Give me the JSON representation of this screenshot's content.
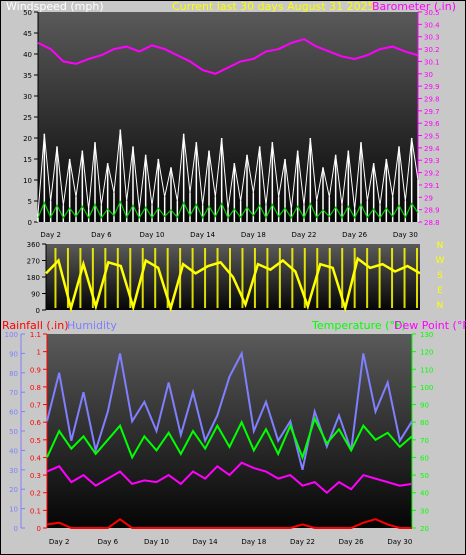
{
  "header": {
    "left_title": "Windspeed (mph)",
    "center_title": "Current last 30 days August 31 2025",
    "right_title": "Barometer (.in)"
  },
  "middle_labels": {
    "right_letters": [
      "N",
      "W",
      "S",
      "E",
      "N"
    ]
  },
  "bottom_header": {
    "rainfall": "Rainfall (.in)",
    "humidity": "Humidity",
    "temperature": "Temperature (°F)",
    "dewpoint": "Dew Point (°F)"
  },
  "colors": {
    "wind_gust": "#ffffff",
    "wind_avg": "#00cc00",
    "barometer": "#ff00ff",
    "direction": "#ffff00",
    "rainfall": "#ff0000",
    "humidity": "#7f7fff",
    "temperature": "#00ff00",
    "dewpoint": "#ff00ff",
    "left_title_color": "#ffffff",
    "center_title_color": "#ffff00",
    "right_title_color": "#ff00ff",
    "rain_axis_color": "#ff0000",
    "humidity_axis_color": "#7f7fff",
    "temp_axis_color": "#00ff00"
  },
  "chart_data": [
    {
      "type": "line",
      "x_label_ticks": [
        "Day 2",
        "Day 6",
        "Day 10",
        "Day 14",
        "Day 18",
        "Day 22",
        "Day 26",
        "Day 30"
      ],
      "xlim": [
        1,
        31
      ],
      "left_axis": {
        "ticks": [
          "0",
          "5",
          "10",
          "15",
          "20",
          "25",
          "30",
          "35",
          "40",
          "45",
          "50"
        ],
        "ylim": [
          0,
          50
        ]
      },
      "right_axis": {
        "ticks": [
          "28.8",
          "28.9",
          "29",
          "29.1",
          "29.2",
          "29.3",
          "29.4",
          "29.5",
          "29.6",
          "29.7",
          "29.8",
          "29.9",
          "30",
          "30.1",
          "30.2",
          "30.3",
          "30.4",
          "30.5"
        ],
        "ylim": [
          28.8,
          30.5
        ]
      },
      "series": [
        {
          "name": "Windspeed (mph)",
          "axis": "left",
          "x": [
            1,
            1.5,
            2,
            2.5,
            3,
            3.5,
            4,
            4.5,
            5,
            5.5,
            6,
            6.5,
            7,
            7.5,
            8,
            8.5,
            9,
            9.5,
            10,
            10.5,
            11,
            11.5,
            12,
            12.5,
            13,
            13.5,
            14,
            14.5,
            15,
            15.5,
            16,
            16.5,
            17,
            17.5,
            18,
            18.5,
            19,
            19.5,
            20,
            20.5,
            21,
            21.5,
            22,
            22.5,
            23,
            23.5,
            24,
            24.5,
            25,
            25.5,
            26,
            26.5,
            27,
            27.5,
            28,
            28.5,
            29,
            29.5,
            30,
            30.5,
            31
          ],
          "values": [
            2,
            21,
            5,
            18,
            4,
            15,
            6,
            17,
            3,
            19,
            4,
            14,
            7,
            22,
            5,
            18,
            3,
            16,
            4,
            15,
            6,
            13,
            5,
            21,
            7,
            19,
            4,
            17,
            6,
            20,
            3,
            14,
            5,
            16,
            7,
            18,
            4,
            19,
            6,
            15,
            3,
            17,
            4,
            20,
            5,
            13,
            6,
            16,
            4,
            17,
            3,
            19,
            5,
            14,
            4,
            15,
            6,
            18,
            5,
            20,
            10
          ]
        },
        {
          "name": "Barometer (.in)",
          "axis": "right",
          "x": [
            1,
            2,
            3,
            4,
            5,
            6,
            7,
            8,
            9,
            10,
            11,
            12,
            13,
            14,
            15,
            16,
            17,
            18,
            19,
            20,
            21,
            22,
            23,
            24,
            25,
            26,
            27,
            28,
            29,
            30,
            31
          ],
          "values": [
            30.25,
            30.2,
            30.1,
            30.08,
            30.12,
            30.15,
            30.2,
            30.22,
            30.18,
            30.23,
            30.2,
            30.15,
            30.1,
            30.03,
            30.0,
            30.05,
            30.1,
            30.12,
            30.18,
            30.2,
            30.25,
            30.28,
            30.22,
            30.18,
            30.14,
            30.12,
            30.15,
            30.2,
            30.22,
            30.18,
            30.15
          ]
        }
      ]
    },
    {
      "type": "line",
      "left_axis": {
        "ticks": [
          "0",
          "90",
          "180",
          "270",
          "360"
        ],
        "ylim": [
          0,
          360
        ]
      },
      "series": [
        {
          "name": "Wind direction",
          "x": [
            1,
            2,
            3,
            4,
            5,
            6,
            7,
            8,
            9,
            10,
            11,
            12,
            13,
            14,
            15,
            16,
            17,
            18,
            19,
            20,
            21,
            22,
            23,
            24,
            25,
            26,
            27,
            28,
            29,
            30,
            31
          ],
          "values": [
            200,
            270,
            10,
            250,
            20,
            260,
            240,
            15,
            270,
            230,
            10,
            250,
            200,
            240,
            260,
            180,
            30,
            250,
            220,
            270,
            210,
            20,
            250,
            230,
            10,
            280,
            230,
            250,
            210,
            240,
            200
          ]
        }
      ]
    },
    {
      "type": "line",
      "x_label_ticks": [
        "Day 2",
        "Day 6",
        "Day 10",
        "Day 14",
        "Day 18",
        "Day 22",
        "Day 26",
        "Day 30"
      ],
      "xlim": [
        1,
        31
      ],
      "humidity_axis": {
        "ticks": [
          "0",
          "10",
          "20",
          "30",
          "40",
          "50",
          "60",
          "70",
          "80",
          "90",
          "100"
        ],
        "ylim": [
          0,
          100
        ]
      },
      "rain_axis": {
        "ticks": [
          "0",
          "0.1",
          "0.2",
          "0.3",
          "0.4",
          "0.5",
          "0.6",
          "0.7",
          "0.8",
          "0.9",
          "1",
          "1.1"
        ],
        "ylim": [
          0,
          1.1
        ]
      },
      "temp_axis": {
        "ticks": [
          "20",
          "30",
          "40",
          "50",
          "60",
          "70",
          "80",
          "90",
          "100",
          "110",
          "120",
          "130"
        ],
        "ylim": [
          20,
          130
        ]
      },
      "series": [
        {
          "name": "Rainfall (.in)",
          "axis": "rain",
          "x": [
            1,
            2,
            3,
            4,
            5,
            6,
            7,
            8,
            9,
            10,
            11,
            12,
            13,
            14,
            15,
            16,
            17,
            18,
            19,
            20,
            21,
            22,
            23,
            24,
            25,
            26,
            27,
            28,
            29,
            30,
            31
          ],
          "values": [
            0.02,
            0.03,
            0,
            0,
            0,
            0,
            0.05,
            0,
            0,
            0,
            0,
            0,
            0,
            0,
            0,
            0,
            0,
            0,
            0,
            0,
            0,
            0.02,
            0,
            0,
            0,
            0,
            0.03,
            0.05,
            0.02,
            0,
            0
          ]
        },
        {
          "name": "Humidity",
          "axis": "humidity",
          "x": [
            1,
            2,
            3,
            4,
            5,
            6,
            7,
            8,
            9,
            10,
            11,
            12,
            13,
            14,
            15,
            16,
            17,
            18,
            19,
            20,
            21,
            22,
            23,
            24,
            25,
            26,
            27,
            28,
            29,
            30,
            31
          ],
          "values": [
            55,
            80,
            45,
            70,
            40,
            60,
            90,
            55,
            65,
            50,
            75,
            48,
            70,
            45,
            58,
            78,
            90,
            50,
            65,
            45,
            55,
            30,
            60,
            42,
            58,
            40,
            90,
            60,
            75,
            45,
            55
          ]
        },
        {
          "name": "Temperature (°F)",
          "axis": "temp",
          "x": [
            1,
            2,
            3,
            4,
            5,
            6,
            7,
            8,
            9,
            10,
            11,
            12,
            13,
            14,
            15,
            16,
            17,
            18,
            19,
            20,
            21,
            22,
            23,
            24,
            25,
            26,
            27,
            28,
            29,
            30,
            31
          ],
          "values": [
            60,
            75,
            65,
            72,
            62,
            70,
            78,
            60,
            72,
            64,
            74,
            62,
            75,
            65,
            78,
            66,
            80,
            64,
            76,
            62,
            78,
            60,
            82,
            68,
            76,
            64,
            78,
            70,
            74,
            66,
            72
          ]
        },
        {
          "name": "Dew Point (°F)",
          "axis": "temp",
          "x": [
            1,
            2,
            3,
            4,
            5,
            6,
            7,
            8,
            9,
            10,
            11,
            12,
            13,
            14,
            15,
            16,
            17,
            18,
            19,
            20,
            21,
            22,
            23,
            24,
            25,
            26,
            27,
            28,
            29,
            30,
            31
          ],
          "values": [
            52,
            55,
            46,
            50,
            44,
            48,
            52,
            45,
            47,
            46,
            50,
            45,
            52,
            48,
            55,
            50,
            57,
            54,
            52,
            48,
            50,
            44,
            46,
            40,
            46,
            42,
            50,
            48,
            46,
            44,
            45
          ]
        }
      ]
    }
  ]
}
